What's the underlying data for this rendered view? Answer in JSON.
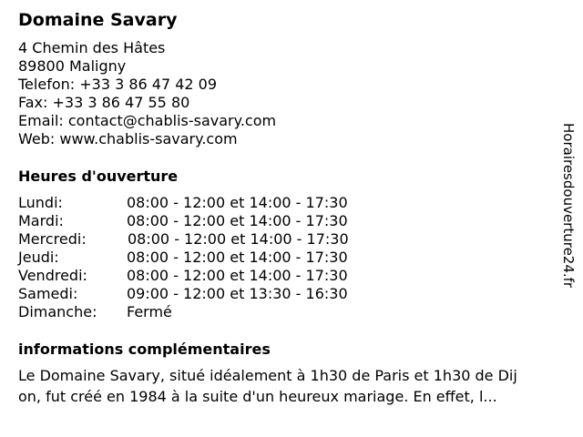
{
  "title": "Domaine Savary",
  "contact": {
    "address1": "4 Chemin des Hâtes",
    "address2": "89800 Maligny",
    "phone": "Telefon: +33 3 86 47 42 09",
    "fax": "Fax: +33 3 86 47 55 80",
    "email": "Email: contact@chablis-savary.com",
    "web": "Web: www.chablis-savary.com"
  },
  "hours": {
    "heading": "Heures d'ouverture",
    "rows": [
      {
        "day": "Lundi:",
        "time": "08:00 - 12:00 et 14:00 - 17:30"
      },
      {
        "day": "Mardi:",
        "time": "08:00 - 12:00 et 14:00 - 17:30"
      },
      {
        "day": "Mercredi:",
        "time": "08:00 - 12:00 et 14:00 - 17:30"
      },
      {
        "day": "Jeudi:",
        "time": "08:00 - 12:00 et 14:00 - 17:30"
      },
      {
        "day": "Vendredi:",
        "time": "08:00 - 12:00 et 14:00 - 17:30"
      },
      {
        "day": "Samedi:",
        "time": "09:00 - 12:00 et 13:30 - 16:30"
      },
      {
        "day": "Dimanche:",
        "time": "Fermé"
      }
    ]
  },
  "info": {
    "heading": "informations complémentaires",
    "lines": [
      "Le Domaine Savary, situé idéalement à 1h30 de Paris et 1h30 de Dij",
      "on, fut créé en 1984 à la suite d'un heureux mariage. En effet, l..."
    ]
  },
  "watermark": "Horairesdouverture24.fr"
}
